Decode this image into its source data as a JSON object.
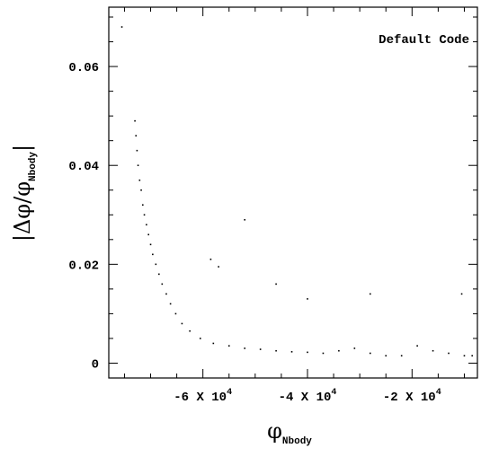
{
  "chart_data": {
    "type": "scatter",
    "title": "",
    "annotation": "Default Code",
    "xlabel": {
      "symbol": "φ",
      "subscript": "Nbody"
    },
    "ylabel": {
      "numerator": "Δφ",
      "denominator": "φ",
      "subscript": "Nbody"
    },
    "xlim": [
      -78000,
      -7500
    ],
    "ylim": [
      -0.003,
      0.072
    ],
    "xticks": [
      {
        "value": -60000,
        "mantissa": "-6",
        "times": "X",
        "base": "10",
        "exp": "4"
      },
      {
        "value": -40000,
        "mantissa": "-4",
        "times": "X",
        "base": "10",
        "exp": "4"
      },
      {
        "value": -20000,
        "mantissa": "-2",
        "times": "X",
        "base": "10",
        "exp": "4"
      }
    ],
    "xminor_step": 5000,
    "yticks": [
      {
        "value": 0,
        "label": "0"
      },
      {
        "value": 0.02,
        "label": "0.02"
      },
      {
        "value": 0.04,
        "label": "0.04"
      },
      {
        "value": 0.06,
        "label": "0.06"
      }
    ],
    "yminor_step": 0.005,
    "grid": false,
    "points": [
      [
        -75500,
        0.068
      ],
      [
        -73000,
        0.049
      ],
      [
        -72800,
        0.046
      ],
      [
        -72600,
        0.043
      ],
      [
        -72400,
        0.04
      ],
      [
        -72100,
        0.037
      ],
      [
        -71800,
        0.035
      ],
      [
        -71500,
        0.032
      ],
      [
        -71200,
        0.03
      ],
      [
        -70800,
        0.028
      ],
      [
        -70400,
        0.026
      ],
      [
        -70000,
        0.024
      ],
      [
        -69600,
        0.022
      ],
      [
        -69000,
        0.02
      ],
      [
        -68400,
        0.018
      ],
      [
        -67800,
        0.016
      ],
      [
        -67000,
        0.014
      ],
      [
        -66200,
        0.012
      ],
      [
        -65200,
        0.01
      ],
      [
        -64000,
        0.008
      ],
      [
        -62500,
        0.0065
      ],
      [
        -60500,
        0.005
      ],
      [
        -58000,
        0.004
      ],
      [
        -55000,
        0.0035
      ],
      [
        -52000,
        0.003
      ],
      [
        -49000,
        0.0028
      ],
      [
        -46000,
        0.0025
      ],
      [
        -43000,
        0.0023
      ],
      [
        -40000,
        0.0022
      ],
      [
        -37000,
        0.002
      ],
      [
        -34000,
        0.0025
      ],
      [
        -31000,
        0.003
      ],
      [
        -28000,
        0.002
      ],
      [
        -25000,
        0.0015
      ],
      [
        -22000,
        0.0015
      ],
      [
        -19000,
        0.0035
      ],
      [
        -16000,
        0.0025
      ],
      [
        -13000,
        0.002
      ],
      [
        -10000,
        0.0015
      ],
      [
        -8500,
        0.0015
      ],
      [
        -52000,
        0.029
      ],
      [
        -46000,
        0.016
      ],
      [
        -40000,
        0.013
      ],
      [
        -28000,
        0.014
      ],
      [
        -10500,
        0.014
      ],
      [
        -57000,
        0.0195
      ],
      [
        -58500,
        0.021
      ]
    ]
  }
}
